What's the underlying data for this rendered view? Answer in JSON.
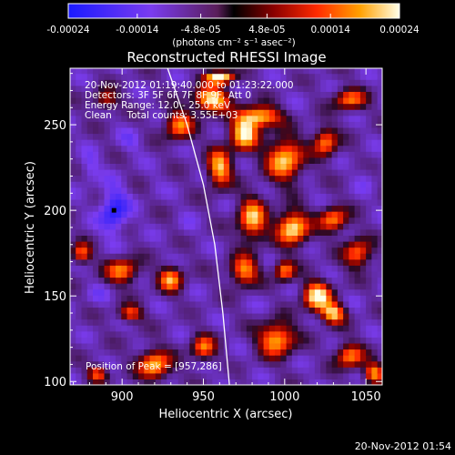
{
  "chart_data": {
    "type": "heatmap",
    "title": "Reconstructed RHESSI Image",
    "xlabel": "Heliocentric X (arcsec)",
    "ylabel": "Heliocentric Y (arcsec)",
    "xlim": [
      868,
      1060
    ],
    "ylim": [
      98,
      283
    ],
    "xticks": [
      900,
      950,
      1000,
      1050
    ],
    "yticks": [
      100,
      150,
      200,
      250
    ],
    "colorbar": {
      "min": -0.00024,
      "max": 0.00024,
      "tick_labels": [
        "-0.00024",
        "-0.00014",
        "-4.8e-05",
        "4.8e-05",
        "0.00014",
        "0.00024"
      ],
      "unit_label": "(photons cm⁻² s⁻¹ asec⁻²)"
    },
    "annotations": [
      "20-Nov-2012 01:19:40.000 to 01:23:22.000",
      "Detectors: 3F 5F 6F 7F 8F 9F, Att 0",
      "Energy Range: 12.0 - 25.0 keV",
      "Clean     Total counts: 3.55E+03"
    ],
    "peak_label": "Position of Peak = [957,286]",
    "peak_position": [
      957,
      286
    ],
    "minimum_marker": [
      895,
      200
    ],
    "limb_curve": [
      [
        928,
        283
      ],
      [
        940,
        250
      ],
      [
        950,
        215
      ],
      [
        957,
        180
      ],
      [
        962,
        140
      ],
      [
        966,
        98
      ]
    ],
    "hot_regions": [
      {
        "x": 960,
        "y": 278,
        "w": 14,
        "h": 6,
        "v": 1.0
      },
      {
        "x": 955,
        "y": 265,
        "w": 18,
        "h": 12,
        "v": 0.85
      },
      {
        "x": 975,
        "y": 245,
        "w": 14,
        "h": 16,
        "v": 0.8
      },
      {
        "x": 985,
        "y": 255,
        "w": 20,
        "h": 10,
        "v": 0.75
      },
      {
        "x": 935,
        "y": 250,
        "w": 14,
        "h": 14,
        "v": 0.55
      },
      {
        "x": 960,
        "y": 225,
        "w": 12,
        "h": 18,
        "v": 0.7
      },
      {
        "x": 1000,
        "y": 230,
        "w": 18,
        "h": 20,
        "v": 0.75
      },
      {
        "x": 1025,
        "y": 240,
        "w": 12,
        "h": 14,
        "v": 0.55
      },
      {
        "x": 1040,
        "y": 265,
        "w": 16,
        "h": 10,
        "v": 0.5
      },
      {
        "x": 980,
        "y": 195,
        "w": 14,
        "h": 20,
        "v": 0.7
      },
      {
        "x": 1005,
        "y": 190,
        "w": 16,
        "h": 16,
        "v": 0.85
      },
      {
        "x": 1030,
        "y": 195,
        "w": 14,
        "h": 12,
        "v": 0.55
      },
      {
        "x": 1045,
        "y": 175,
        "w": 14,
        "h": 14,
        "v": 0.5
      },
      {
        "x": 975,
        "y": 165,
        "w": 14,
        "h": 14,
        "v": 0.6
      },
      {
        "x": 1020,
        "y": 150,
        "w": 14,
        "h": 14,
        "v": 0.85
      },
      {
        "x": 1030,
        "y": 140,
        "w": 12,
        "h": 10,
        "v": 0.7
      },
      {
        "x": 995,
        "y": 125,
        "w": 18,
        "h": 16,
        "v": 0.7
      },
      {
        "x": 1040,
        "y": 115,
        "w": 14,
        "h": 12,
        "v": 0.55
      },
      {
        "x": 1055,
        "y": 105,
        "w": 10,
        "h": 10,
        "v": 0.6
      },
      {
        "x": 930,
        "y": 160,
        "w": 12,
        "h": 12,
        "v": 0.6
      },
      {
        "x": 900,
        "y": 165,
        "w": 16,
        "h": 12,
        "v": 0.55
      },
      {
        "x": 875,
        "y": 175,
        "w": 10,
        "h": 10,
        "v": 0.45
      },
      {
        "x": 920,
        "y": 110,
        "w": 16,
        "h": 14,
        "v": 0.7
      },
      {
        "x": 950,
        "y": 120,
        "w": 12,
        "h": 12,
        "v": 0.5
      },
      {
        "x": 885,
        "y": 105,
        "w": 10,
        "h": 8,
        "v": 0.45
      },
      {
        "x": 1000,
        "y": 165,
        "w": 10,
        "h": 10,
        "v": 0.55
      },
      {
        "x": 890,
        "y": 265,
        "w": 12,
        "h": 10,
        "v": 0.3
      },
      {
        "x": 905,
        "y": 140,
        "w": 12,
        "h": 8,
        "v": 0.45
      }
    ],
    "cold_regions": [
      {
        "x": 895,
        "y": 200,
        "w": 14,
        "h": 22,
        "v": -1.0
      },
      {
        "x": 880,
        "y": 225,
        "w": 10,
        "h": 14,
        "v": -0.6
      },
      {
        "x": 905,
        "y": 240,
        "w": 12,
        "h": 12,
        "v": -0.5
      },
      {
        "x": 885,
        "y": 150,
        "w": 12,
        "h": 10,
        "v": -0.45
      },
      {
        "x": 940,
        "y": 190,
        "w": 10,
        "h": 12,
        "v": -0.4
      },
      {
        "x": 1015,
        "y": 210,
        "w": 10,
        "h": 10,
        "v": -0.35
      },
      {
        "x": 1050,
        "y": 220,
        "w": 10,
        "h": 14,
        "v": -0.45
      },
      {
        "x": 990,
        "y": 145,
        "w": 10,
        "h": 10,
        "v": -0.35
      },
      {
        "x": 1045,
        "y": 150,
        "w": 10,
        "h": 10,
        "v": -0.35
      },
      {
        "x": 940,
        "y": 140,
        "w": 10,
        "h": 10,
        "v": -0.35
      },
      {
        "x": 1010,
        "y": 270,
        "w": 12,
        "h": 10,
        "v": -0.35
      },
      {
        "x": 965,
        "y": 105,
        "w": 10,
        "h": 10,
        "v": -0.4
      },
      {
        "x": 1020,
        "y": 110,
        "w": 10,
        "h": 10,
        "v": -0.35
      },
      {
        "x": 920,
        "y": 215,
        "w": 10,
        "h": 12,
        "v": -0.35
      }
    ]
  },
  "footer_timestamp": "20-Nov-2012 01:54"
}
